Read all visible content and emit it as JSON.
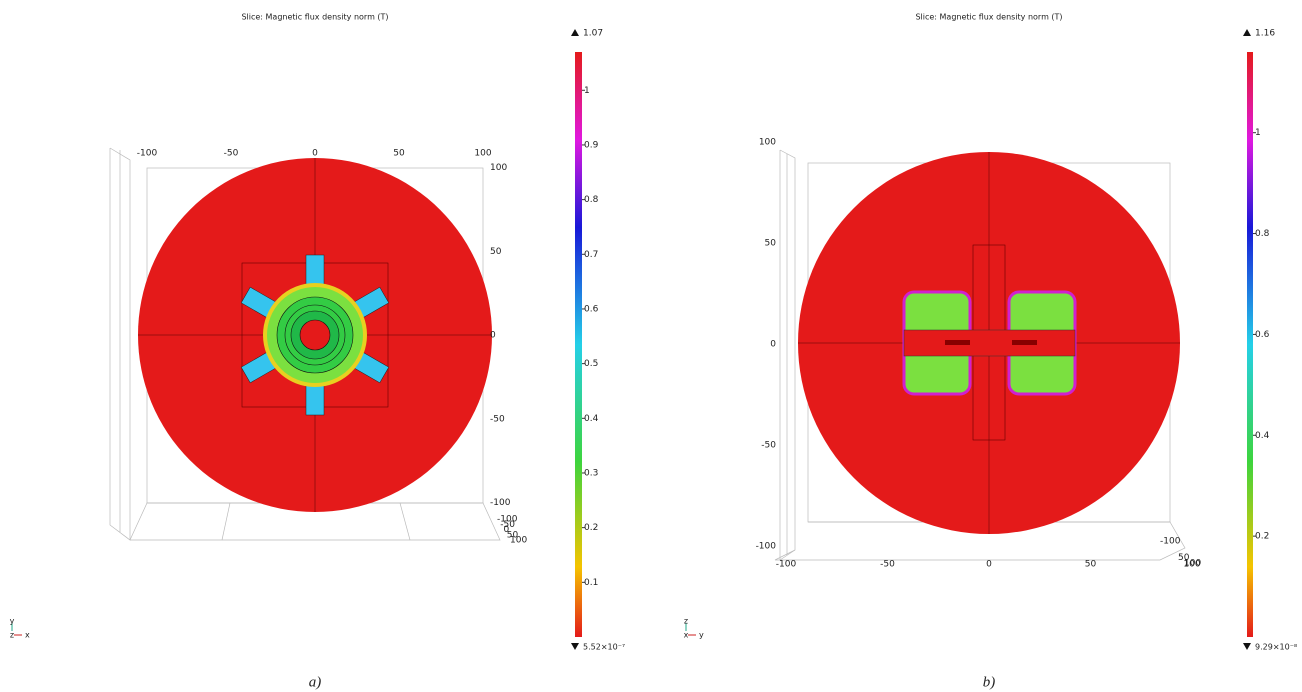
{
  "panels": [
    {
      "title": "Slice: Magnetic flux density norm (T)",
      "colorbar": {
        "max": 1.07,
        "min": {
          "value": 5.52e-07,
          "label": "5.52×10⁻⁷"
        },
        "ticks": [
          0.1,
          0.2,
          0.3,
          0.4,
          0.5,
          0.6,
          0.7,
          0.8,
          0.9,
          1
        ]
      },
      "axis_ticks": {
        "x": [
          -100,
          -50,
          0,
          50,
          100
        ],
        "y": [
          100,
          50,
          0,
          -50,
          -100
        ],
        "depth": [
          -100,
          -50,
          0,
          50,
          100
        ]
      },
      "triad": {
        "up": "y",
        "out": "z",
        "right": "x"
      },
      "caption": "a)"
    },
    {
      "title": "Slice: Magnetic flux density norm (T)",
      "colorbar": {
        "max": 1.16,
        "min": {
          "value": 9.29e-08,
          "label": "9.29×10⁻⁸"
        },
        "ticks": [
          0.2,
          0.4,
          0.6,
          0.8,
          1
        ]
      },
      "axis_ticks": {
        "x": [
          -100,
          -50,
          0,
          50,
          100
        ],
        "y": [
          100,
          50,
          0,
          -50,
          -100
        ],
        "depth": [
          -100,
          50,
          100
        ]
      },
      "triad": {
        "up": "z",
        "out": "x",
        "right": "y"
      },
      "caption": "b)"
    }
  ]
}
